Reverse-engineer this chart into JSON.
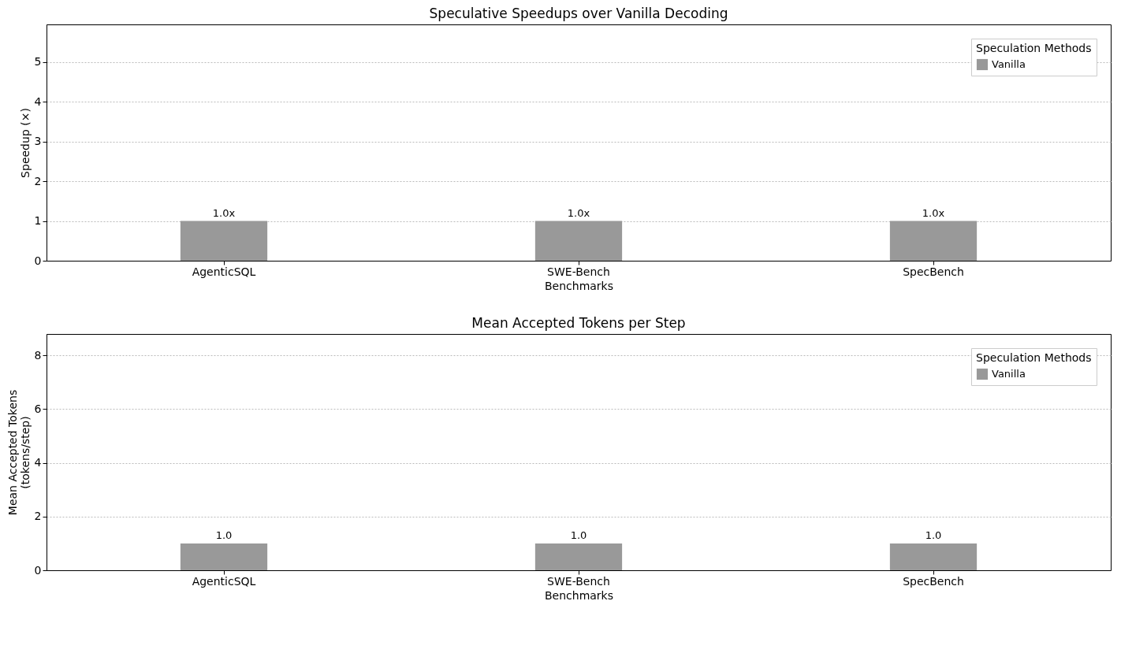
{
  "chart_data": [
    {
      "type": "bar",
      "title": "Speculative Speedups over Vanilla Decoding",
      "xlabel": "Benchmarks",
      "ylabel": "Speedup (×)",
      "legend_title": "Speculation Methods",
      "categories": [
        "AgenticSQL",
        "SWE-Bench",
        "SpecBench"
      ],
      "series": [
        {
          "name": "Vanilla",
          "color": "#999999",
          "values": [
            1.0,
            1.0,
            1.0
          ],
          "value_labels": [
            "1.0x",
            "1.0x",
            "1.0x"
          ]
        }
      ],
      "ylim": [
        0,
        5.95
      ],
      "yticks": [
        0,
        1,
        2,
        3,
        4,
        5
      ],
      "grid": "y",
      "legend": "top right"
    },
    {
      "type": "bar",
      "title": "Mean Accepted Tokens per Step",
      "xlabel": "Benchmarks",
      "ylabel": "Mean Accepted Tokens\n(tokens/step)",
      "legend_title": "Speculation Methods",
      "categories": [
        "AgenticSQL",
        "SWE-Bench",
        "SpecBench"
      ],
      "series": [
        {
          "name": "Vanilla",
          "color": "#999999",
          "values": [
            1.0,
            1.0,
            1.0
          ],
          "value_labels": [
            "1.0",
            "1.0",
            "1.0"
          ]
        }
      ],
      "ylim": [
        0,
        8.8
      ],
      "yticks": [
        0,
        2,
        4,
        6,
        8
      ],
      "grid": "y",
      "legend": "top right"
    }
  ]
}
